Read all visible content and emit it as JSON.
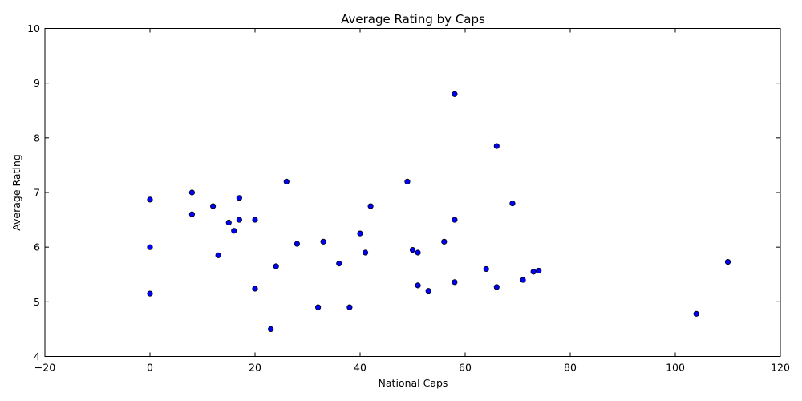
{
  "chart_data": {
    "type": "scatter",
    "title": "Average Rating by Caps",
    "xlabel": "National Caps",
    "ylabel": "Average Rating",
    "xlim": [
      -20,
      120
    ],
    "ylim": [
      4,
      10
    ],
    "xticks": [
      -20,
      0,
      20,
      40,
      60,
      80,
      100,
      120
    ],
    "yticks": [
      4,
      5,
      6,
      7,
      8,
      9,
      10
    ],
    "xtick_labels": [
      "−20",
      "0",
      "20",
      "40",
      "60",
      "80",
      "100",
      "120"
    ],
    "ytick_labels": [
      "4",
      "5",
      "6",
      "7",
      "8",
      "9",
      "10"
    ],
    "grid": false,
    "marker_color": "#0000ff",
    "points": [
      {
        "x": 0,
        "y": 6.87
      },
      {
        "x": 0,
        "y": 6.0
      },
      {
        "x": 0,
        "y": 5.15
      },
      {
        "x": 8,
        "y": 7.0
      },
      {
        "x": 8,
        "y": 6.6
      },
      {
        "x": 12,
        "y": 6.75
      },
      {
        "x": 13,
        "y": 5.85
      },
      {
        "x": 15,
        "y": 6.45
      },
      {
        "x": 16,
        "y": 6.3
      },
      {
        "x": 17,
        "y": 6.9
      },
      {
        "x": 17,
        "y": 6.5
      },
      {
        "x": 20,
        "y": 6.5
      },
      {
        "x": 20,
        "y": 5.24
      },
      {
        "x": 23,
        "y": 4.5
      },
      {
        "x": 24,
        "y": 5.65
      },
      {
        "x": 26,
        "y": 7.2
      },
      {
        "x": 28,
        "y": 6.06
      },
      {
        "x": 32,
        "y": 4.9
      },
      {
        "x": 33,
        "y": 6.1
      },
      {
        "x": 36,
        "y": 5.7
      },
      {
        "x": 38,
        "y": 4.9
      },
      {
        "x": 40,
        "y": 6.25
      },
      {
        "x": 41,
        "y": 5.9
      },
      {
        "x": 42,
        "y": 6.75
      },
      {
        "x": 49,
        "y": 7.2
      },
      {
        "x": 50,
        "y": 5.95
      },
      {
        "x": 51,
        "y": 5.9
      },
      {
        "x": 51,
        "y": 5.3
      },
      {
        "x": 53,
        "y": 5.2
      },
      {
        "x": 56,
        "y": 6.1
      },
      {
        "x": 58,
        "y": 8.8
      },
      {
        "x": 58,
        "y": 6.5
      },
      {
        "x": 58,
        "y": 5.36
      },
      {
        "x": 64,
        "y": 5.6
      },
      {
        "x": 66,
        "y": 7.85
      },
      {
        "x": 66,
        "y": 5.27
      },
      {
        "x": 69,
        "y": 6.8
      },
      {
        "x": 71,
        "y": 5.4
      },
      {
        "x": 73,
        "y": 5.55
      },
      {
        "x": 74,
        "y": 5.57
      },
      {
        "x": 104,
        "y": 4.78
      },
      {
        "x": 110,
        "y": 5.73
      }
    ]
  }
}
